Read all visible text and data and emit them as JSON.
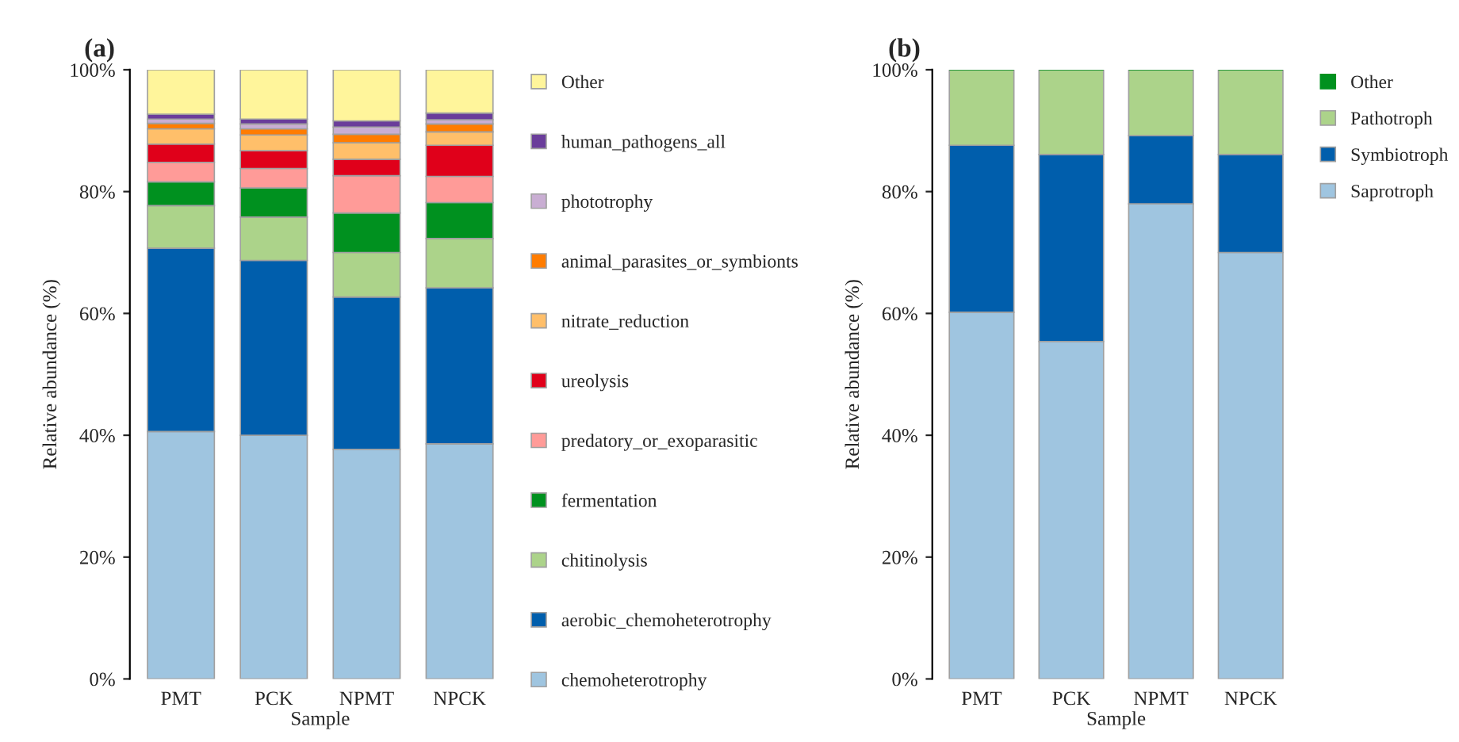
{
  "chart_data": [
    {
      "type": "bar",
      "title": "(a)",
      "xlabel": "Sample",
      "ylabel": "Relative abundance (%)",
      "categories": [
        "PMT",
        "PCK",
        "NPMT",
        "NPCK"
      ],
      "stacked": true,
      "ylim": [
        0,
        100
      ],
      "yticks": [
        {
          "value": 0,
          "label": "0%"
        },
        {
          "value": 20,
          "label": "20%"
        },
        {
          "value": 40,
          "label": "40%"
        },
        {
          "value": 60,
          "label": "60%"
        },
        {
          "value": 80,
          "label": "80%"
        },
        {
          "value": 100,
          "label": "100%"
        }
      ],
      "grid": false,
      "legend": "right",
      "series": [
        {
          "name": "chemoheterotrophy",
          "color": "#9fc5e0",
          "values": [
            40.6,
            40.0,
            37.7,
            38.6
          ]
        },
        {
          "name": "aerobic_chemoheterotrophy",
          "color": "#005eac",
          "values": [
            30.1,
            28.7,
            25.0,
            25.6
          ]
        },
        {
          "name": "chitinolysis",
          "color": "#acd38a",
          "values": [
            7.0,
            7.1,
            7.3,
            8.1
          ]
        },
        {
          "name": "fermentation",
          "color": "#00911f",
          "values": [
            3.9,
            4.8,
            6.5,
            5.9
          ]
        },
        {
          "name": "predatory_or_exoparasitic",
          "color": "#ff9b98",
          "values": [
            3.2,
            3.2,
            6.1,
            4.3
          ]
        },
        {
          "name": "ureolysis",
          "color": "#e0001a",
          "values": [
            3.0,
            2.9,
            2.7,
            5.1
          ]
        },
        {
          "name": "nitrate_reduction",
          "color": "#ffbf6a",
          "values": [
            2.5,
            2.6,
            2.7,
            2.2
          ]
        },
        {
          "name": "animal_parasites_or_symbionts",
          "color": "#ff7c00",
          "values": [
            0.9,
            1.0,
            1.4,
            1.3
          ]
        },
        {
          "name": "phototrophy",
          "color": "#c9aed3",
          "values": [
            0.7,
            0.8,
            1.2,
            0.7
          ]
        },
        {
          "name": "human_pathogens_all",
          "color": "#6a3d9a",
          "values": [
            0.8,
            0.8,
            1.0,
            1.1
          ]
        },
        {
          "name": "Other",
          "color": "#fff59b",
          "values": [
            7.3,
            8.1,
            8.4,
            7.1
          ]
        }
      ]
    },
    {
      "type": "bar",
      "title": "(b)",
      "xlabel": "Sample",
      "ylabel": "Relative abundance (%)",
      "categories": [
        "PMT",
        "PCK",
        "NPMT",
        "NPCK"
      ],
      "stacked": true,
      "ylim": [
        0,
        100
      ],
      "yticks": [
        {
          "value": 0,
          "label": "0%"
        },
        {
          "value": 20,
          "label": "20%"
        },
        {
          "value": 40,
          "label": "40%"
        },
        {
          "value": 60,
          "label": "60%"
        },
        {
          "value": 80,
          "label": "80%"
        },
        {
          "value": 100,
          "label": "100%"
        }
      ],
      "grid": false,
      "legend": "right",
      "series": [
        {
          "name": "Saprotroph",
          "color": "#9fc5e0",
          "values": [
            60.2,
            55.4,
            78.0,
            70.0
          ]
        },
        {
          "name": "Symbiotroph",
          "color": "#005eac",
          "values": [
            27.4,
            30.7,
            11.2,
            16.1
          ]
        },
        {
          "name": "Pathotroph",
          "color": "#acd38a",
          "values": [
            12.4,
            13.9,
            10.8,
            13.9
          ]
        },
        {
          "name": "Other",
          "color": "#00911f",
          "values": [
            0,
            0,
            0,
            0
          ]
        }
      ]
    }
  ]
}
